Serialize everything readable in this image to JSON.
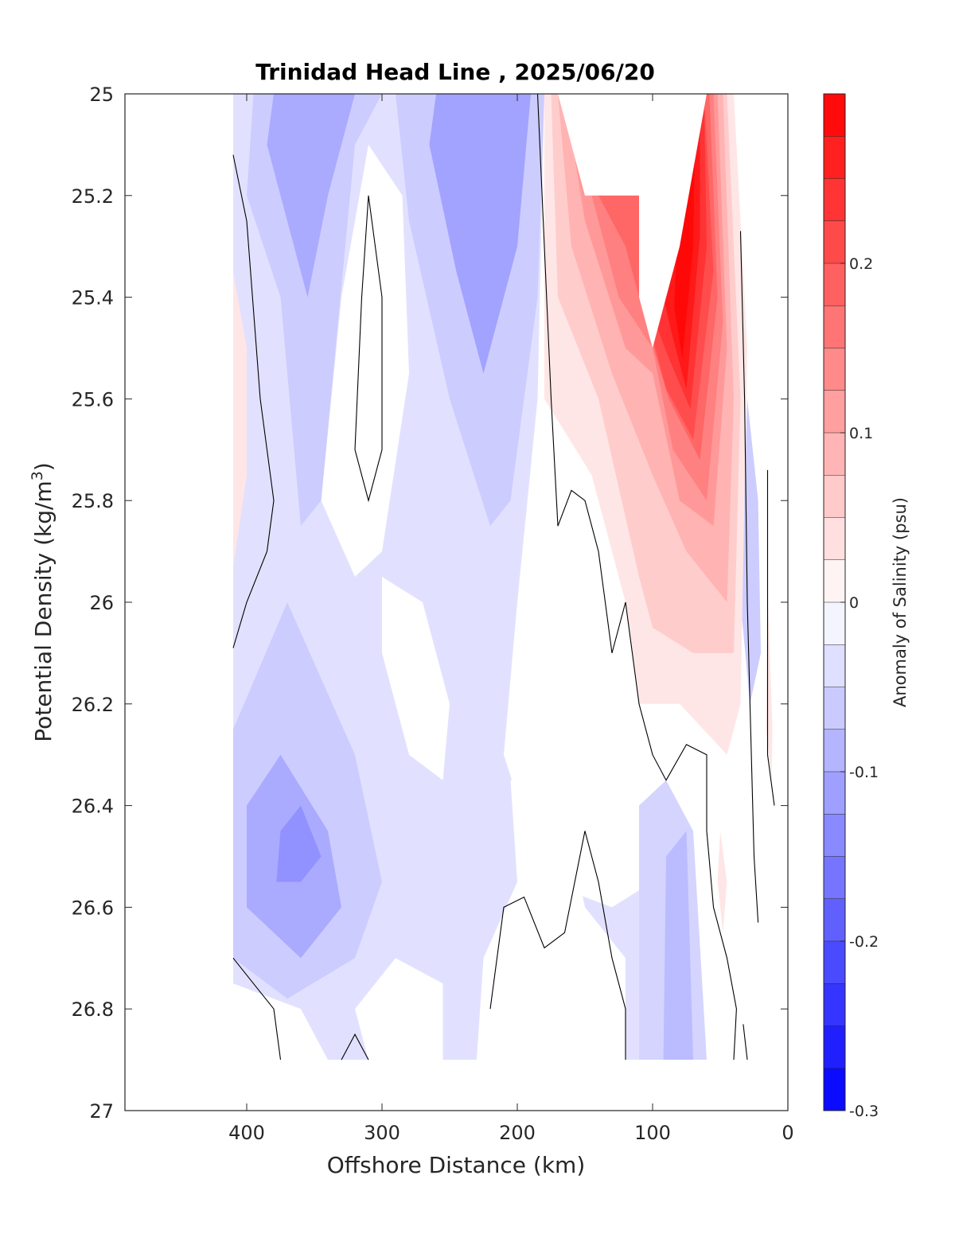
{
  "chart_data": {
    "type": "heatmap",
    "subtype": "filled contour section",
    "title": "Trinidad Head Line , 2025/06/20",
    "xlabel": "Offshore Distance (km)",
    "ylabel": "Potential Density (kg/m3)",
    "ylabel_base": "Potential Density (kg/m",
    "ylabel_sup": "3",
    "ylabel_close": ")",
    "xlim": [
      490,
      0
    ],
    "ylim": [
      27,
      25
    ],
    "y_reversed": true,
    "x_reversed": true,
    "xticks": [
      400,
      300,
      200,
      100,
      0
    ],
    "yticks": [
      25,
      25.2,
      25.4,
      25.6,
      25.8,
      26,
      26.2,
      26.4,
      26.6,
      26.8,
      27
    ],
    "grid": false,
    "colorbar": {
      "label": "Anomaly of Salinity (psu)",
      "range": [
        -0.3,
        0.3
      ],
      "levels": 24,
      "ticks": [
        0.2,
        0.1,
        0,
        -0.1,
        -0.2,
        -0.3
      ],
      "tick_labels": [
        "0.2",
        "0.1",
        "0",
        "-0.1",
        "-0.2",
        "-0.3"
      ],
      "colormap": "blue-white-red",
      "neg_color": "#0000ff",
      "pos_color": "#ff0000",
      "zero_color": "#ffffff"
    },
    "features": [
      {
        "name": "nearshore salinity maximum core",
        "x_center": 80,
        "sigma_center": 25.6,
        "anomaly": 0.29
      },
      {
        "name": "secondary high-salinity lobe",
        "x_center": 140,
        "sigma_center": 25.3,
        "anomaly": 0.2
      },
      {
        "name": "offshore low-salinity core (upper)",
        "x_center": 225,
        "sigma_center": 25.15,
        "anomaly": -0.14
      },
      {
        "name": "offshore low-salinity core (upper, west)",
        "x_center": 350,
        "sigma_center": 25.2,
        "anomaly": -0.13
      },
      {
        "name": "deep low-salinity core",
        "x_center": 360,
        "sigma_center": 26.5,
        "anomaly": -0.12
      },
      {
        "name": "coastal low-salinity filament",
        "x_center": 25,
        "sigma_center": 26.0,
        "anomaly": -0.08
      }
    ],
    "data_x_extent": [
      410,
      10
    ],
    "data_sigma_extent": [
      25,
      26.9
    ],
    "zero_contour_color": "#000000"
  }
}
